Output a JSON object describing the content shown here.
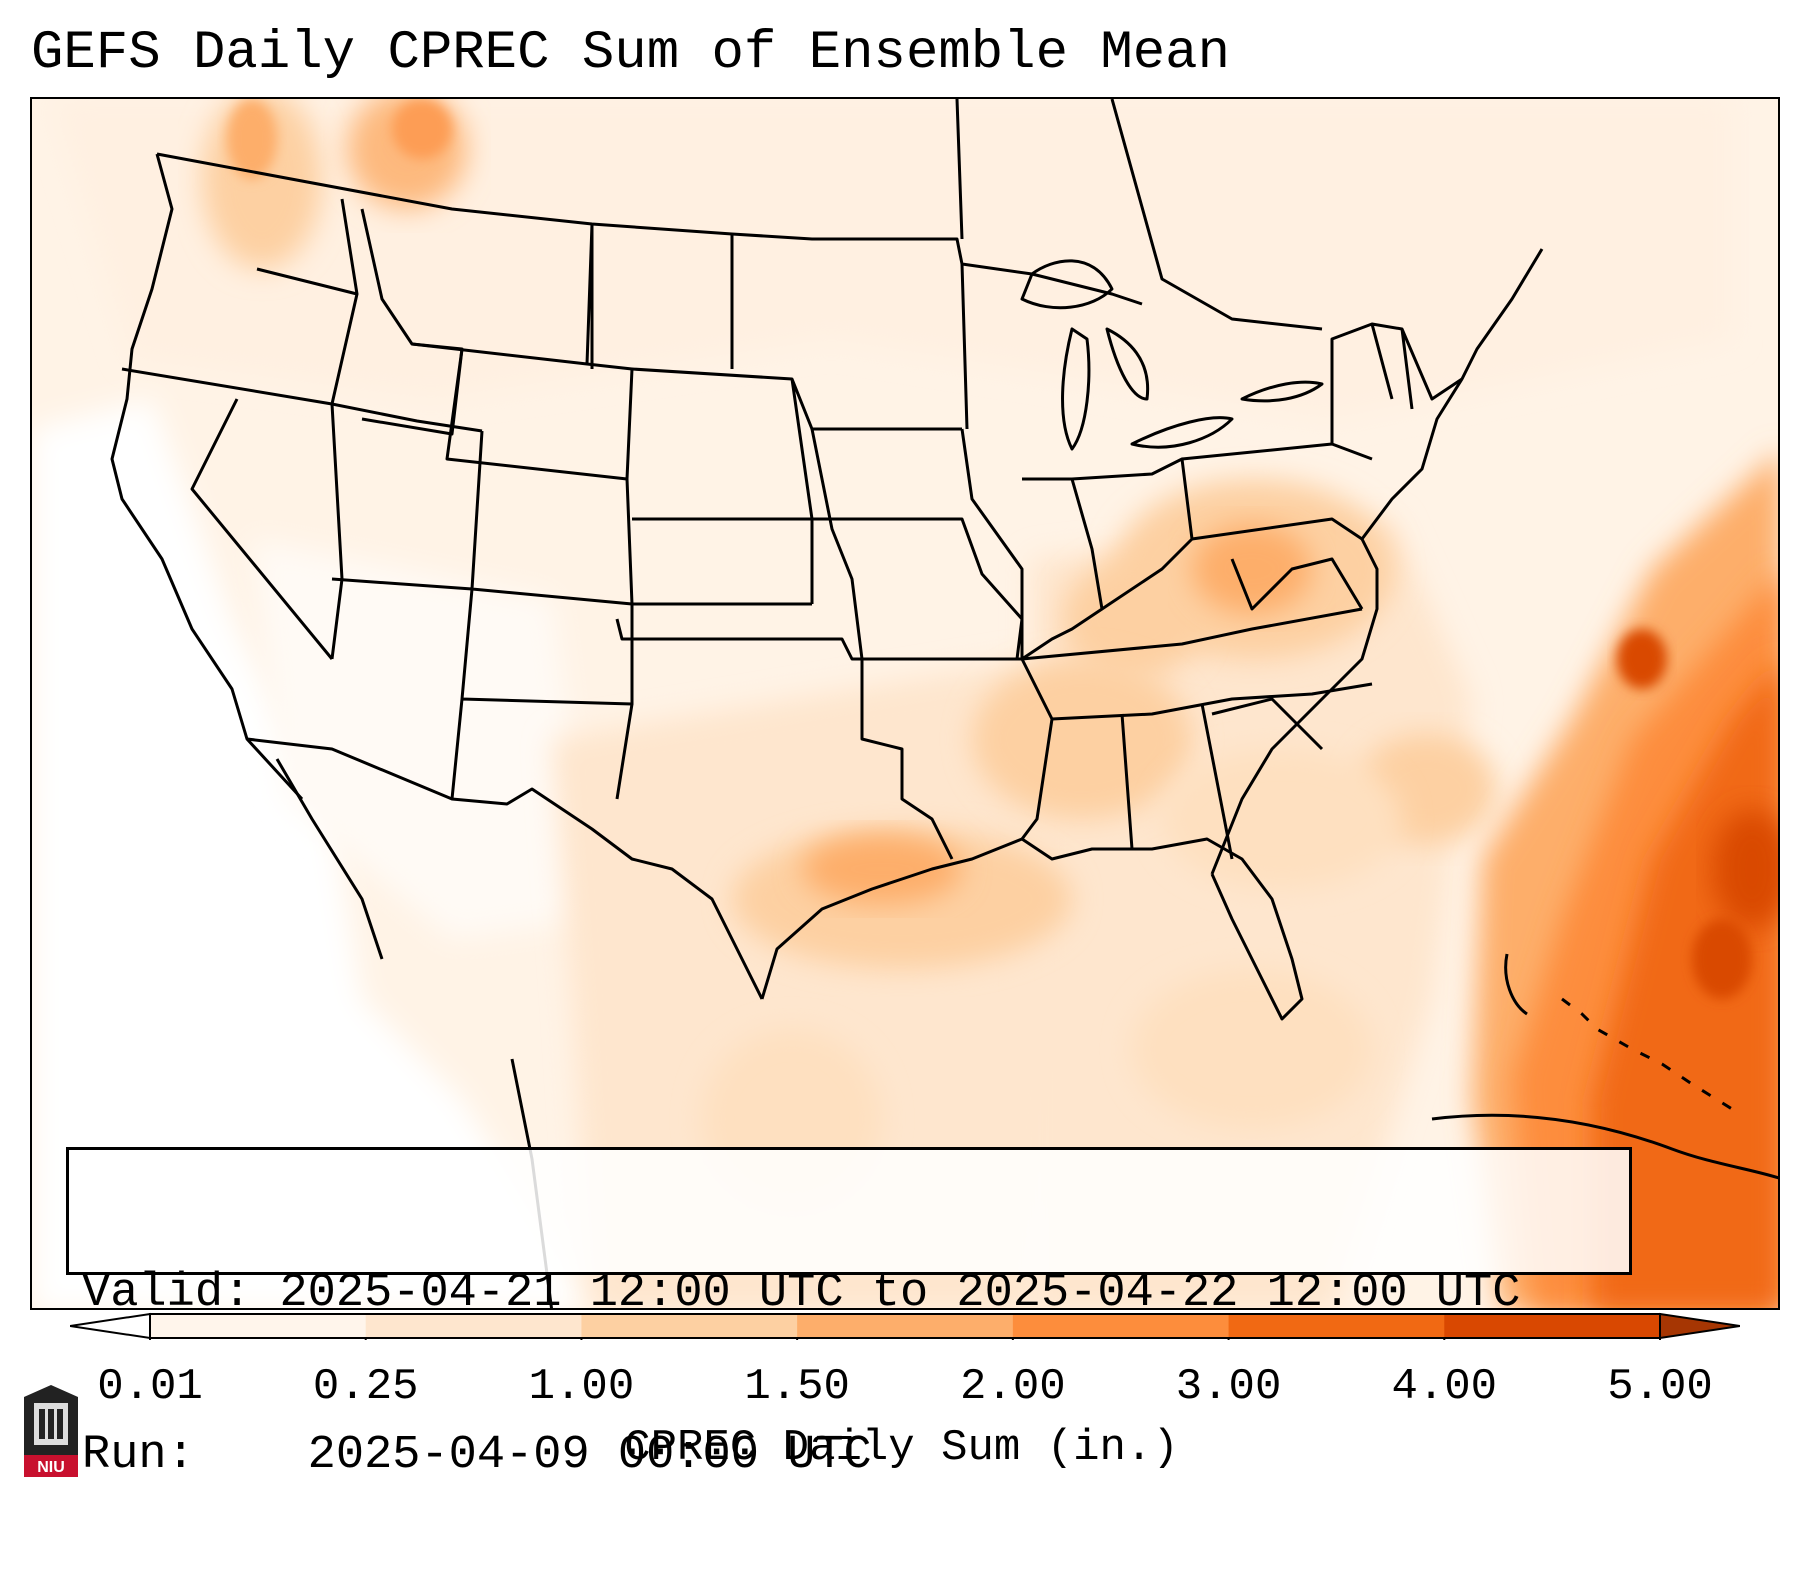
{
  "title": "GEFS Daily CPREC Sum of Ensemble Mean",
  "info": {
    "valid_label": "Valid:",
    "valid_value": "2025-04-21 12:00 UTC to 2025-04-22 12:00 UTC",
    "run_label": "Run:",
    "run_value": "2025-04-09 00:00 UTC"
  },
  "colorbar": {
    "label": "CPREC Daily Sum (in.)",
    "ticks": [
      "0.01",
      "0.25",
      "1.00",
      "1.50",
      "2.00",
      "3.00",
      "4.00",
      "5.00"
    ],
    "bin_colors": [
      "#fff5eb",
      "#fee6ce",
      "#fdd0a2",
      "#fdae6b",
      "#fd8d3c",
      "#f16913",
      "#d94801"
    ],
    "under_color": "#ffffff",
    "over_color": "#a63603",
    "extend": "both"
  },
  "map": {
    "projection": "Lambert conformal, CONUS",
    "features": [
      "state-borders",
      "coastlines",
      "country-borders"
    ],
    "heavy_area": "Western Atlantic off the Southeast coast",
    "moderate_areas": [
      "Indiana",
      "Ohio",
      "Texas",
      "Oklahoma",
      "South Carolina",
      "Pacific Northwest"
    ]
  },
  "logo": {
    "text": "NIU"
  }
}
